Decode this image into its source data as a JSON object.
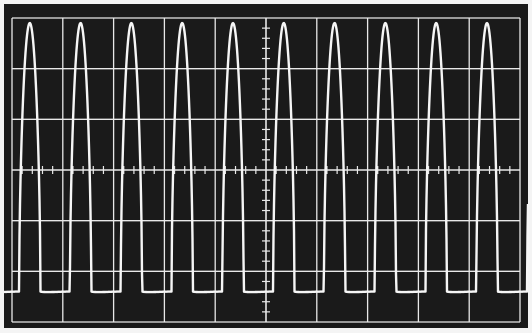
{
  "screen": {
    "background": "#1a1a1a",
    "frame": "#f4f4f4",
    "graticule": "#e8e8e8",
    "trace": "#f6f6f6"
  },
  "graticule": {
    "major_vertical_divisions": 10,
    "major_horizontal_divisions": 6,
    "minor_ticks_per_division": 5
  },
  "waveform": {
    "type": "periodic-pulse",
    "cycles_visible": 10,
    "peak_level_div": 2.9,
    "base_level_div": -2.4
  }
}
